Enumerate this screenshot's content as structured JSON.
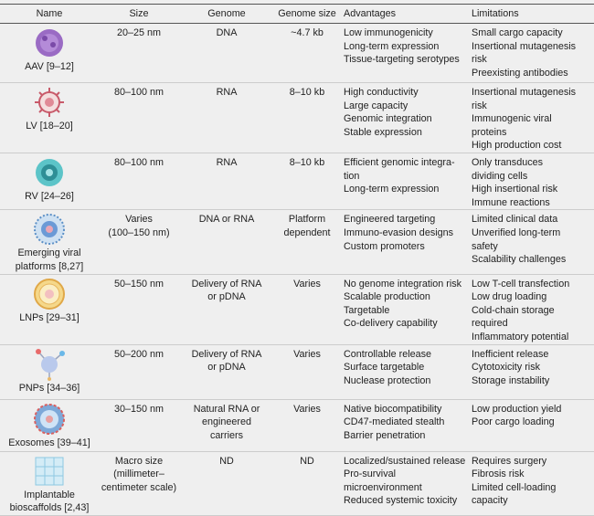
{
  "table": {
    "columns": [
      "Name",
      "Size",
      "Genome",
      "Genome size",
      "Advantages",
      "Limitations"
    ],
    "rows": [
      {
        "name": [
          "AAV [9–12]"
        ],
        "size": [
          "20–25 nm"
        ],
        "genome": [
          "DNA"
        ],
        "genome_size": [
          "~4.7 kb"
        ],
        "advantages": [
          "Low immunogenicity",
          "Long-term expression",
          "Tissue-targeting serotypes"
        ],
        "limitations": [
          "Small cargo capacity",
          "Insertional mutagenesis",
          "risk",
          "Preexisting antibodies"
        ]
      },
      {
        "name": [
          "LV [18–20]"
        ],
        "size": [
          "80–100 nm"
        ],
        "genome": [
          "RNA"
        ],
        "genome_size": [
          "8–10 kb"
        ],
        "advantages": [
          "High conductivity",
          "Large capacity",
          "Genomic integration",
          "Stable expression"
        ],
        "limitations": [
          "Insertional mutagenesis",
          "risk",
          "Immunogenic viral",
          "proteins",
          "High production cost"
        ]
      },
      {
        "name": [
          "RV [24–26]"
        ],
        "size": [
          "80–100 nm"
        ],
        "genome": [
          "RNA"
        ],
        "genome_size": [
          "8–10 kb"
        ],
        "advantages": [
          "Efficient genomic integra-",
          "tion",
          "Long-term expression"
        ],
        "limitations": [
          "Only transduces",
          "dividing cells",
          "High insertional risk",
          "Immune reactions"
        ]
      },
      {
        "name": [
          "Emerging viral",
          "platforms [8,27]"
        ],
        "size": [
          "Varies",
          "(100–150 nm)"
        ],
        "genome": [
          "DNA or RNA"
        ],
        "genome_size": [
          "Platform",
          "dependent"
        ],
        "advantages": [
          "Engineered targeting",
          "Immuno-evasion designs",
          "Custom promoters"
        ],
        "limitations": [
          "Limited clinical data",
          "Unverified long-term",
          "safety",
          "Scalability challenges"
        ]
      },
      {
        "name": [
          "LNPs [29–31]"
        ],
        "size": [
          "50–150 nm"
        ],
        "genome": [
          "Delivery of RNA",
          "or pDNA"
        ],
        "genome_size": [
          "Varies"
        ],
        "advantages": [
          "No genome integration risk",
          "Scalable production",
          "Targetable",
          "Co-delivery capability"
        ],
        "limitations": [
          "Low T-cell transfection",
          "Low drug loading",
          "Cold-chain storage",
          "required",
          "Inflammatory potential"
        ]
      },
      {
        "name": [
          "PNPs [34–36]"
        ],
        "size": [
          "50–200 nm"
        ],
        "genome": [
          "Delivery of RNA",
          "or pDNA"
        ],
        "genome_size": [
          "Varies"
        ],
        "advantages": [
          "Controllable release",
          "Surface targetable",
          "Nuclease protection"
        ],
        "limitations": [
          "Inefficient release",
          "Cytotoxicity risk",
          "Storage instability"
        ]
      },
      {
        "name": [
          "Exosomes [39–41]"
        ],
        "size": [
          "30–150 nm"
        ],
        "genome": [
          "Natural RNA or",
          "engineered",
          "carriers"
        ],
        "genome_size": [
          "Varies"
        ],
        "advantages": [
          "Native biocompatibility",
          "CD47-mediated stealth",
          "Barrier penetration"
        ],
        "limitations": [
          "Low production yield",
          "Poor cargo loading"
        ]
      },
      {
        "name": [
          "Implantable",
          "bioscaffolds [2,43]"
        ],
        "size": [
          "Macro size",
          "(millimeter–",
          "centimeter scale)"
        ],
        "genome": [
          "ND"
        ],
        "genome_size": [
          "ND"
        ],
        "advantages": [
          "Localized/sustained release",
          "Pro-survival",
          "microenvironment",
          "Reduced systemic toxicity"
        ],
        "limitations": [
          "Requires surgery",
          "Fibrosis risk",
          "Limited cell-loading",
          "capacity"
        ]
      }
    ]
  }
}
